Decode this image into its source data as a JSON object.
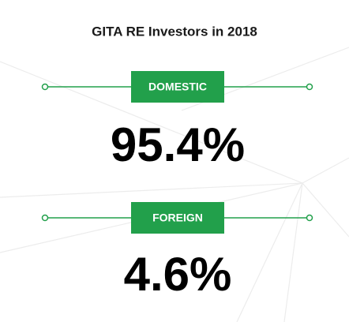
{
  "header": {
    "title": "GITA RE Investors in 2018"
  },
  "items": [
    {
      "label": "DOMESTIC",
      "value": "95.4%"
    },
    {
      "label": "FOREIGN",
      "value": "4.6%"
    }
  ]
}
